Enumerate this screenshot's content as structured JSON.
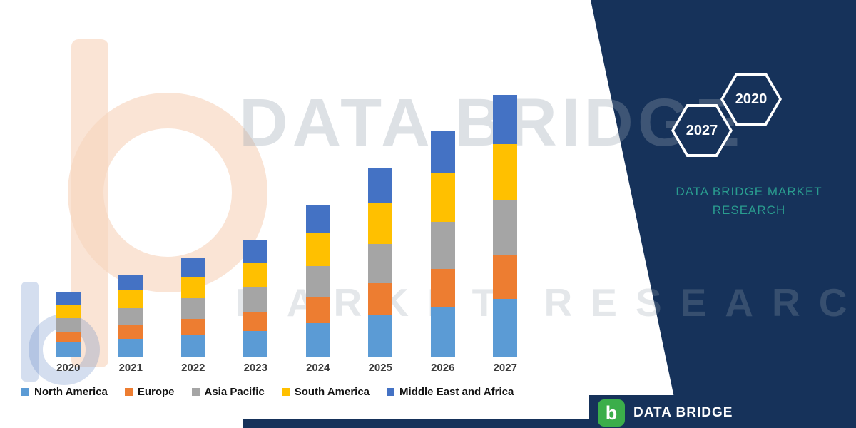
{
  "watermark": {
    "line1": "DATA BRIDGE",
    "line2": "MARKET RESEARCH"
  },
  "side_panel": {
    "hexagon_left_year": "2027",
    "hexagon_right_year": "2020",
    "brand_line1": "DATA BRIDGE MARKET",
    "brand_line2": "RESEARCH",
    "panel_color": "#16325A",
    "accent_color": "#2A9D8F"
  },
  "footer": {
    "logo_letter": "b",
    "brand": "DATA BRIDGE",
    "logo_color": "#3BAE4A",
    "bar_color": "#16325A"
  },
  "chart_data": {
    "type": "bar",
    "stacked": true,
    "title": "",
    "xlabel": "",
    "ylabel": "",
    "axis_labels_visible": false,
    "grid": false,
    "legend_position": "bottom",
    "unit": "relative units (no y-axis shown)",
    "categories": [
      "2020",
      "2021",
      "2022",
      "2023",
      "2024",
      "2025",
      "2026",
      "2027"
    ],
    "series": [
      {
        "name": "North America",
        "color": "#5B9BD5",
        "values": [
          20,
          25,
          30,
          36,
          47,
          58,
          70,
          81
        ]
      },
      {
        "name": "Europe",
        "color": "#ED7D31",
        "values": [
          15,
          19,
          23,
          27,
          36,
          45,
          53,
          62
        ]
      },
      {
        "name": "Asia Pacific",
        "color": "#A5A5A5",
        "values": [
          19,
          24,
          29,
          34,
          44,
          55,
          66,
          76
        ]
      },
      {
        "name": "South America",
        "color": "#FFC000",
        "values": [
          19,
          25,
          30,
          35,
          46,
          57,
          68,
          79
        ]
      },
      {
        "name": "Middle East and Africa",
        "color": "#4472C4",
        "values": [
          17,
          22,
          26,
          31,
          40,
          50,
          59,
          69
        ]
      }
    ],
    "totals": [
      90,
      115,
      138,
      163,
      213,
      265,
      316,
      367
    ]
  }
}
